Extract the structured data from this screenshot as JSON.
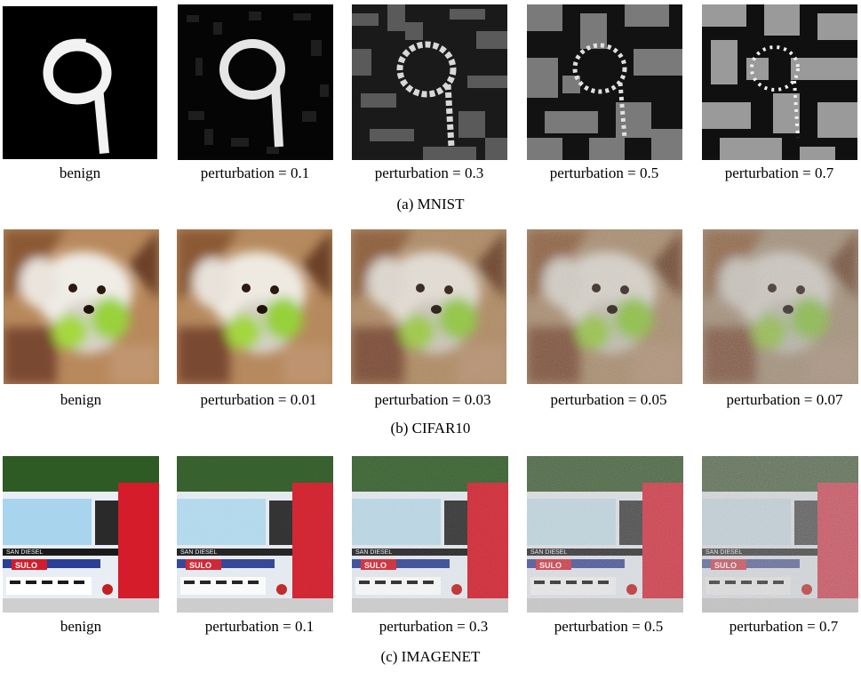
{
  "figure": {
    "panels": [
      {
        "dataset": "MNIST",
        "caption": "(a) MNIST",
        "images": [
          {
            "label": "benign"
          },
          {
            "label": "perturbation = 0.1"
          },
          {
            "label": "perturbation = 0.3"
          },
          {
            "label": "perturbation = 0.5"
          },
          {
            "label": "perturbation = 0.7"
          }
        ]
      },
      {
        "dataset": "CIFAR10",
        "caption": "(b) CIFAR10",
        "images": [
          {
            "label": "benign"
          },
          {
            "label": "perturbation = 0.01"
          },
          {
            "label": "perturbation = 0.03"
          },
          {
            "label": "perturbation = 0.05"
          },
          {
            "label": "perturbation = 0.07"
          }
        ]
      },
      {
        "dataset": "IMAGENET",
        "caption": "(c) IMAGENET",
        "images": [
          {
            "label": "benign"
          },
          {
            "label": "perturbation = 0.1"
          },
          {
            "label": "perturbation = 0.3"
          },
          {
            "label": "perturbation = 0.5"
          },
          {
            "label": "perturbation = 0.7"
          }
        ],
        "truck_text": {
          "brand": "SULO",
          "maker": "SAN DIESEL"
        }
      }
    ]
  }
}
